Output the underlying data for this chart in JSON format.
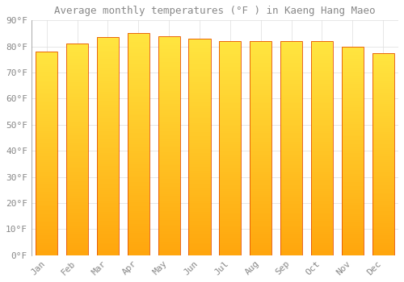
{
  "title": "Average monthly temperatures (°F ) in Kaeng Hang Maeo",
  "months": [
    "Jan",
    "Feb",
    "Mar",
    "Apr",
    "May",
    "Jun",
    "Jul",
    "Aug",
    "Sep",
    "Oct",
    "Nov",
    "Dec"
  ],
  "values": [
    78,
    81,
    83.5,
    85,
    84,
    83,
    82,
    82,
    82,
    82,
    80,
    77.5
  ],
  "bar_color_main": "#FFA726",
  "bar_color_light": "#FFD54F",
  "bar_edge_color": "#E65100",
  "background_color": "#FFFFFF",
  "grid_color": "#DDDDDD",
  "text_color": "#888888",
  "ylim": [
    0,
    90
  ],
  "yticks": [
    0,
    10,
    20,
    30,
    40,
    50,
    60,
    70,
    80,
    90
  ],
  "ytick_labels": [
    "0°F",
    "10°F",
    "20°F",
    "30°F",
    "40°F",
    "50°F",
    "60°F",
    "70°F",
    "80°F",
    "90°F"
  ],
  "title_fontsize": 9,
  "tick_fontsize": 8,
  "font_family": "monospace",
  "bar_width": 0.72
}
